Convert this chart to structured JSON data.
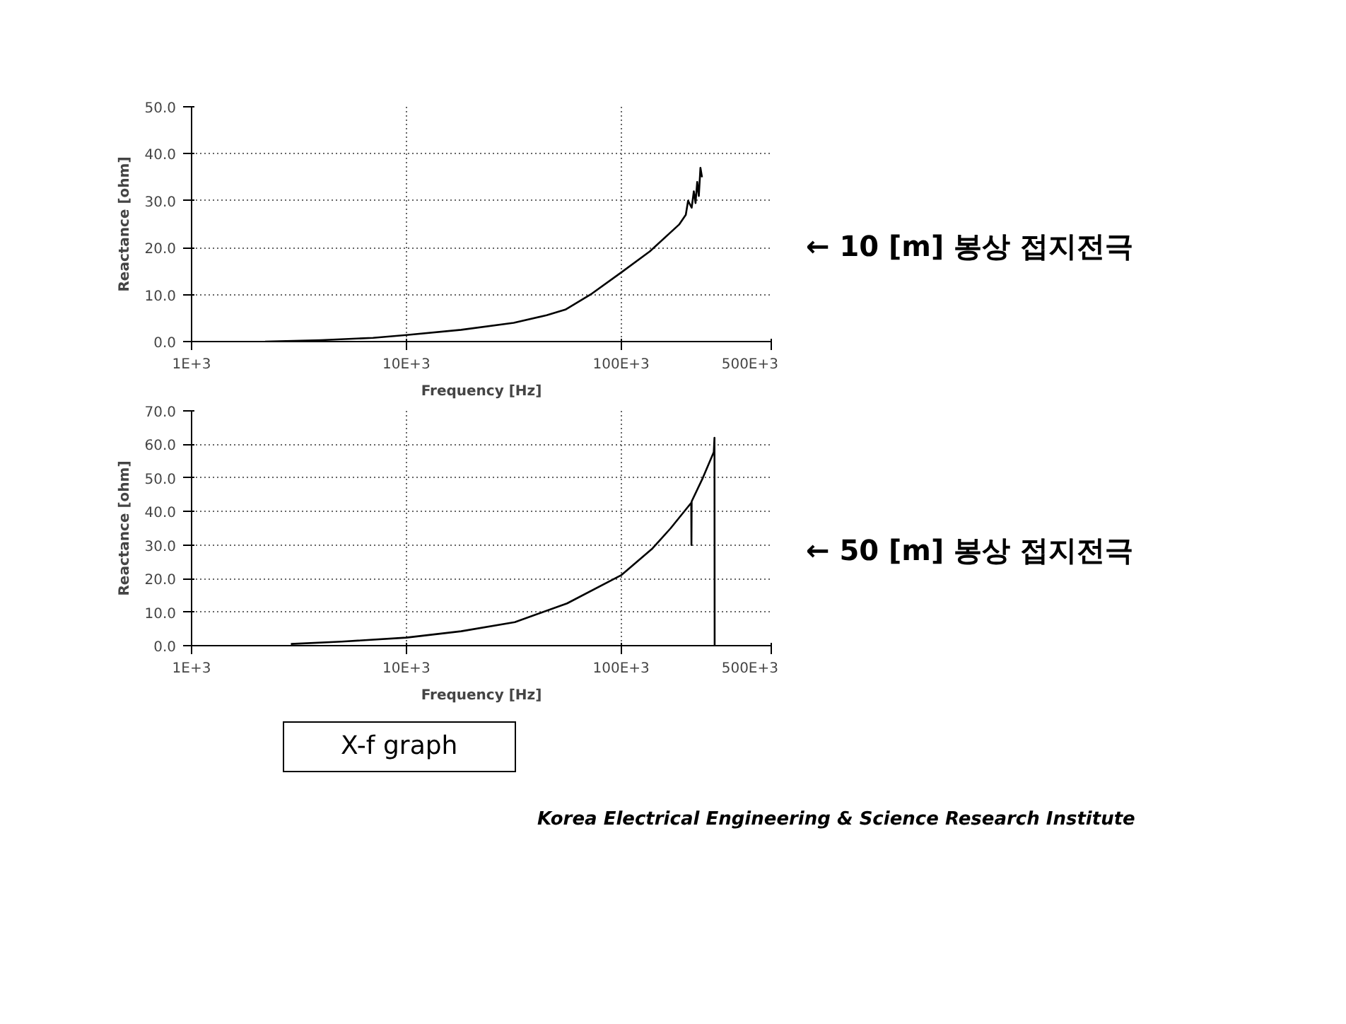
{
  "chart_data": [
    {
      "type": "line",
      "xlabel": "Frequency [Hz]",
      "ylabel": "Reactance [ohm]",
      "log": "x",
      "grid": true,
      "marker": "none",
      "line_style": "solid",
      "xlim": [
        1000,
        500000
      ],
      "xticks": [
        {
          "value": 1000,
          "label": "1E+3"
        },
        {
          "value": 10000,
          "label": "10E+3"
        },
        {
          "value": 100000,
          "label": "100E+3"
        },
        {
          "value": 500000,
          "label": "500E+3"
        }
      ],
      "ylim": [
        0,
        50
      ],
      "yticks": [
        {
          "value": 0,
          "label": "0.0"
        },
        {
          "value": 10,
          "label": "10.0"
        },
        {
          "value": 20,
          "label": "20.0"
        },
        {
          "value": 30,
          "label": "30.0"
        },
        {
          "value": 40,
          "label": "40.0"
        },
        {
          "value": 50,
          "label": "50.0"
        }
      ],
      "series": [
        {
          "color": "#000000",
          "x": [
            2200,
            4000,
            7000,
            10000,
            18000,
            31600,
            45000,
            55000,
            73000,
            100000,
            136000,
            186000,
            200000,
            205000,
            213000,
            218000,
            222000,
            226000,
            230000,
            234000,
            238000
          ],
          "values": [
            0,
            0.3,
            0.8,
            1.4,
            2.5,
            4,
            5.6,
            6.8,
            10.2,
            14.7,
            19.2,
            24.9,
            27,
            30,
            28.5,
            32,
            29.5,
            34,
            31,
            37,
            35
          ]
        }
      ],
      "annotations": [
        "← 10 [m] 봉상 접지전극"
      ]
    },
    {
      "type": "line",
      "xlabel": "Frequency [Hz]",
      "ylabel": "Reactance [ohm]",
      "log": "x",
      "grid": true,
      "marker": "none",
      "line_style": "solid",
      "xlim": [
        1000,
        500000
      ],
      "xticks": [
        {
          "value": 1000,
          "label": "1E+3"
        },
        {
          "value": 10000,
          "label": "10E+3"
        },
        {
          "value": 100000,
          "label": "100E+3"
        },
        {
          "value": 500000,
          "label": "500E+3"
        }
      ],
      "ylim": [
        0,
        70
      ],
      "yticks": [
        {
          "value": 0,
          "label": "0.0"
        },
        {
          "value": 10,
          "label": "10.0"
        },
        {
          "value": 20,
          "label": "20.0"
        },
        {
          "value": 30,
          "label": "30.0"
        },
        {
          "value": 40,
          "label": "40.0"
        },
        {
          "value": 50,
          "label": "50.0"
        },
        {
          "value": 60,
          "label": "60.0"
        },
        {
          "value": 70,
          "label": "70.0"
        }
      ],
      "series": [
        {
          "color": "#000000",
          "x": [
            2900,
            5000,
            10000,
            18000,
            32000,
            56000,
            100000,
            140000,
            170000,
            212000,
            212500,
            213000,
            240000,
            270000,
            272000,
            272500
          ],
          "values": [
            0.5,
            1.2,
            2.4,
            4.3,
            7,
            12.6,
            21,
            29,
            35,
            42.6,
            30,
            43,
            50,
            57.7,
            62,
            0
          ]
        }
      ],
      "annotations": [
        "← 50 [m] 봉상 접지전극"
      ]
    },
    {
      "type": "other",
      "annotations": [
        "X-f graph",
        "Korea Electrical Engineering & Science Research Institute"
      ]
    }
  ]
}
